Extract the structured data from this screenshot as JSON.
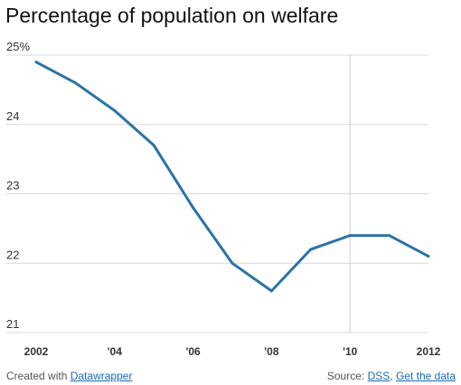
{
  "title": "Percentage of population on welfare",
  "footer": {
    "created_prefix": "Created with",
    "created_link": "Datawrapper",
    "source_prefix": "Source:",
    "source_link": "DSS",
    "separator": ",",
    "data_link": "Get the data"
  },
  "colors": {
    "line": "#2a73a7",
    "grid": "#d9d9d9",
    "highlight_line": "#cccccc"
  },
  "chart_data": {
    "type": "line",
    "title": "Percentage of population on welfare",
    "xlabel": "",
    "ylabel": "",
    "x": [
      2002,
      2003,
      2004,
      2005,
      2006,
      2007,
      2008,
      2009,
      2010,
      2011,
      2012
    ],
    "series": [
      {
        "values": [
          24.9,
          24.6,
          24.2,
          23.7,
          22.8,
          22.0,
          21.6,
          22.2,
          22.4,
          22.4,
          22.1
        ]
      }
    ],
    "xlim": [
      2002,
      2012
    ],
    "ylim": [
      21,
      25
    ],
    "x_ticks": [
      {
        "value": 2002,
        "label": "2002"
      },
      {
        "value": 2004,
        "label": "'04"
      },
      {
        "value": 2006,
        "label": "'06"
      },
      {
        "value": 2008,
        "label": "'08"
      },
      {
        "value": 2010,
        "label": "'10"
      },
      {
        "value": 2012,
        "label": "2012"
      }
    ],
    "y_ticks": [
      {
        "value": 25,
        "label": "25%"
      },
      {
        "value": 24,
        "label": "24"
      },
      {
        "value": 23,
        "label": "23"
      },
      {
        "value": 22,
        "label": "22"
      },
      {
        "value": 21,
        "label": "21"
      }
    ],
    "highlight_x": 2010,
    "grid": true
  }
}
